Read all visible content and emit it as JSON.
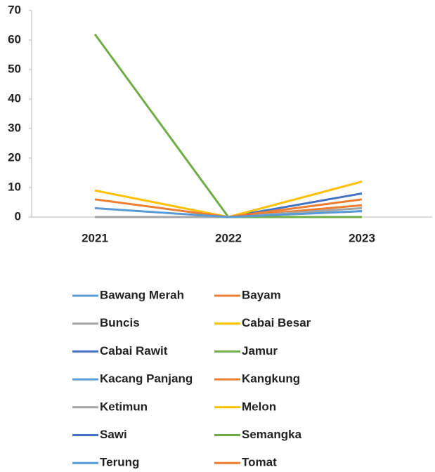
{
  "chart_data": {
    "type": "line",
    "categories": [
      "2021",
      "2022",
      "2023"
    ],
    "series": [
      {
        "name": "Bawang Merah",
        "color": "#5b9bd5",
        "values": [
          3,
          0,
          2
        ]
      },
      {
        "name": "Bayam",
        "color": "#ed7d31",
        "values": [
          6,
          0,
          6
        ]
      },
      {
        "name": "Buncis",
        "color": "#a5a5a5",
        "values": [
          0,
          0,
          3
        ]
      },
      {
        "name": "Cabai Besar",
        "color": "#ffc000",
        "values": [
          9,
          0,
          12
        ]
      },
      {
        "name": "Cabai Rawit",
        "color": "#4472c4",
        "values": [
          0,
          0,
          8
        ]
      },
      {
        "name": "Jamur",
        "color": "#70ad47",
        "values": [
          62,
          0,
          0
        ]
      },
      {
        "name": "Kacang Panjang",
        "color": "#5b9bd5",
        "values": [
          0,
          0,
          2
        ]
      },
      {
        "name": "Kangkung",
        "color": "#ed7d31",
        "values": [
          0,
          0,
          4
        ]
      },
      {
        "name": "Ketimun",
        "color": "#a5a5a5",
        "values": [
          0,
          0,
          0
        ]
      },
      {
        "name": "Melon",
        "color": "#ffc000",
        "values": [
          0,
          0,
          0
        ]
      },
      {
        "name": "Sawi",
        "color": "#4472c4",
        "values": [
          0,
          0,
          0
        ]
      },
      {
        "name": "Semangka",
        "color": "#70ad47",
        "values": [
          0,
          0,
          0
        ]
      },
      {
        "name": "Terung",
        "color": "#5b9bd5",
        "values": [
          0,
          0,
          0
        ]
      },
      {
        "name": "Tomat",
        "color": "#ed7d31",
        "values": [
          0,
          0,
          0
        ]
      }
    ],
    "ylim": [
      0,
      70
    ],
    "yticks": [
      0,
      10,
      20,
      30,
      40,
      50,
      60,
      70
    ],
    "grid": false
  }
}
